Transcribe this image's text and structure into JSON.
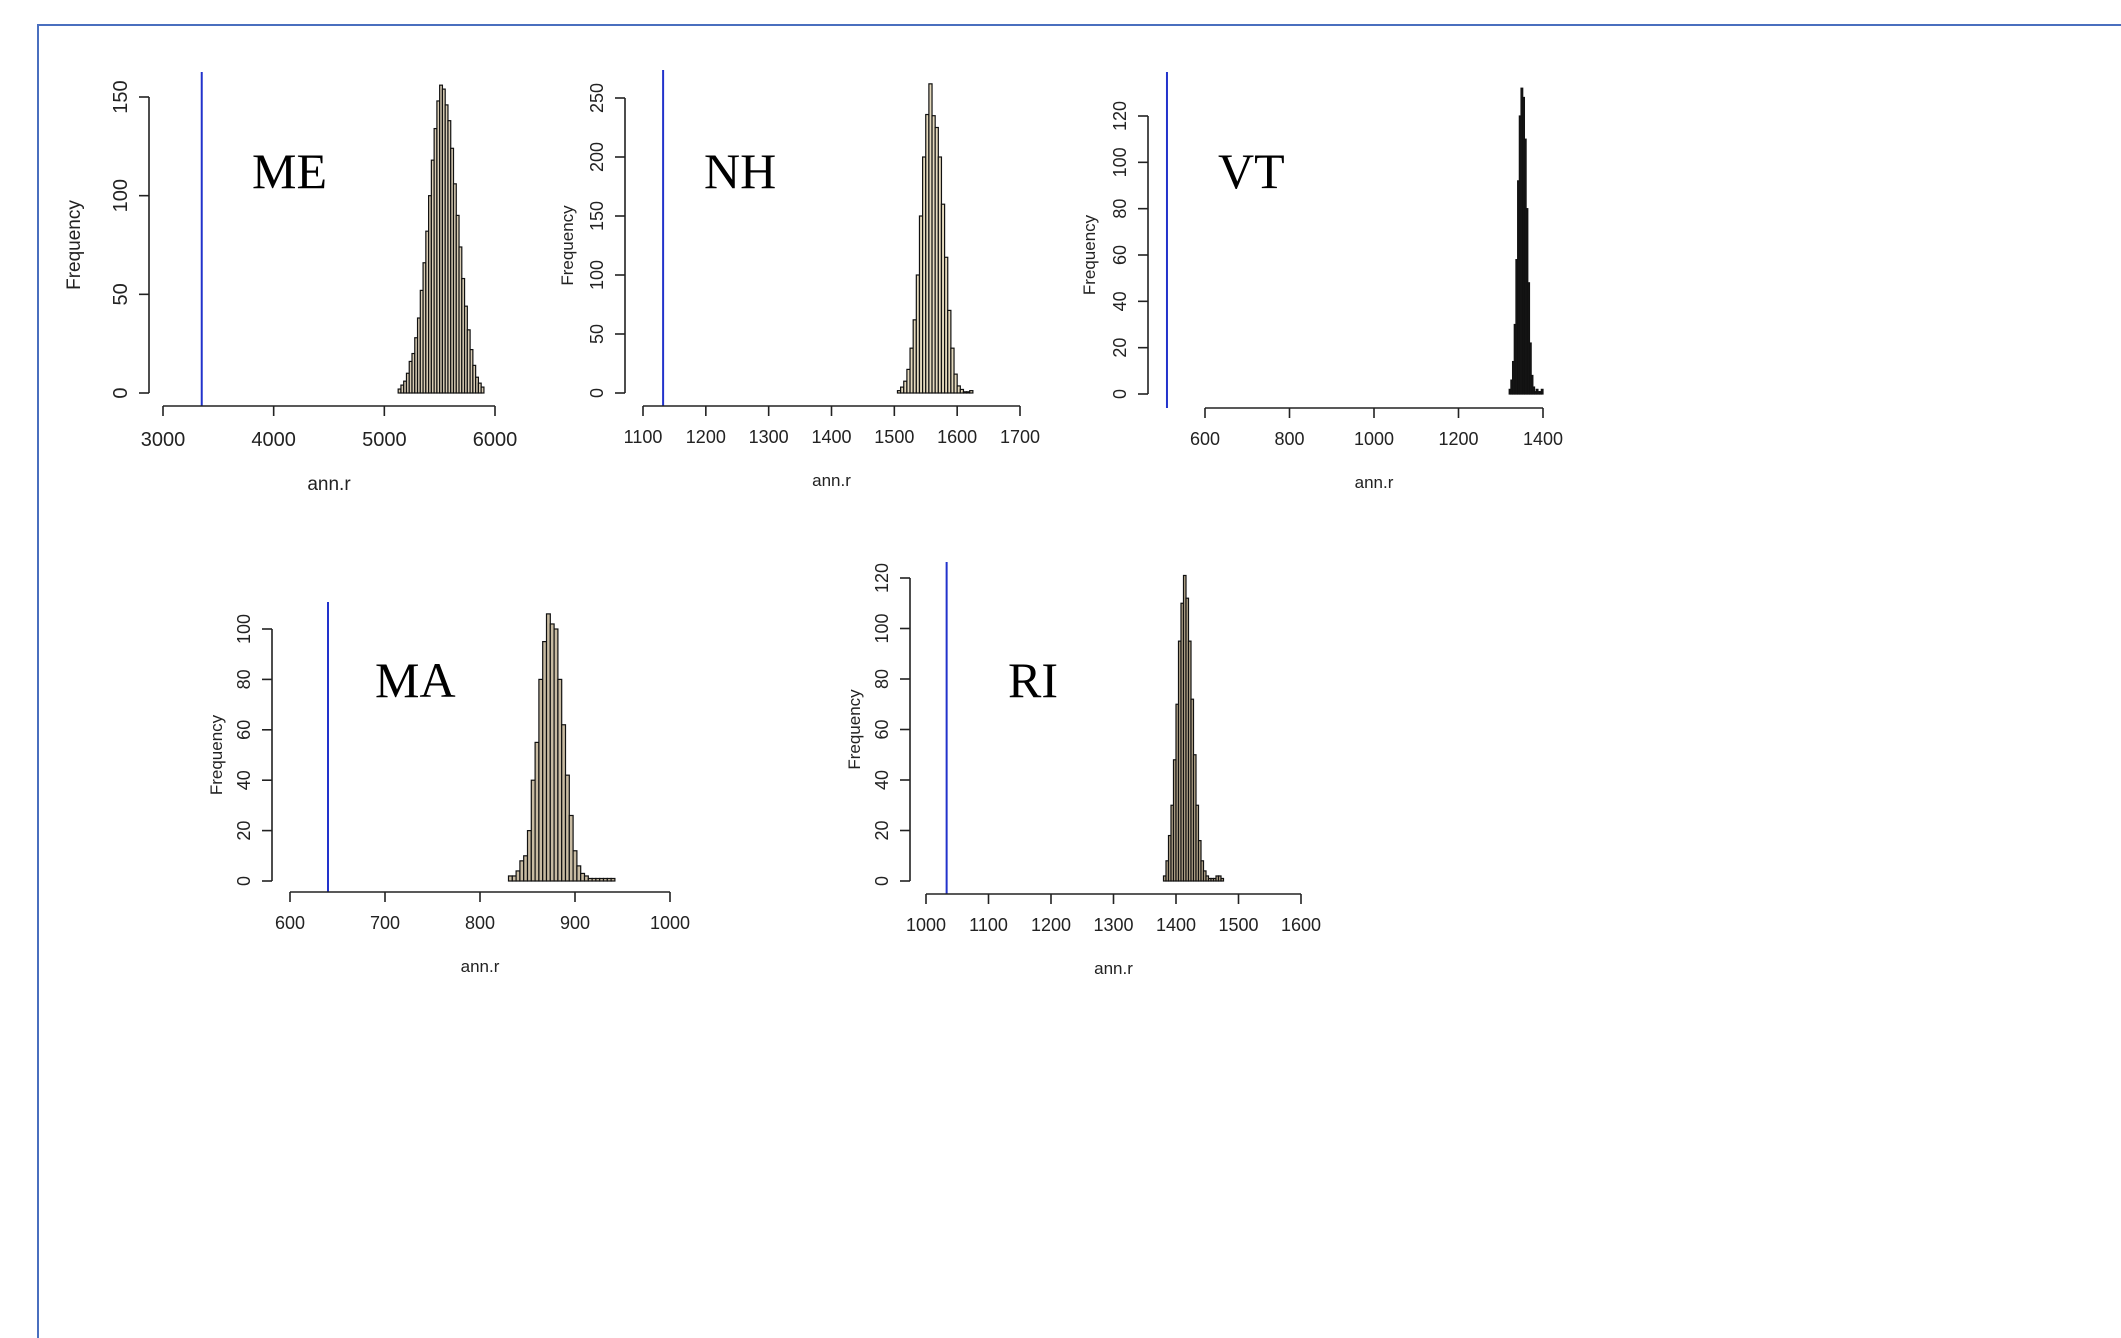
{
  "chart_data": [
    {
      "type": "bar",
      "panel_label": "ME",
      "xlabel": "ann.r",
      "ylabel": "Frequency",
      "xlim": [
        3000,
        6000
      ],
      "ylim": [
        0,
        150
      ],
      "x_ticks": [
        3000,
        4000,
        5000,
        6000
      ],
      "y_ticks": [
        0,
        50,
        100,
        150
      ],
      "reference_line": 3350,
      "bar_color": "#d8ccb4",
      "line_color": "#2233cc",
      "bins": {
        "start": 5125,
        "width": 25,
        "counts": [
          2,
          4,
          6,
          10,
          16,
          20,
          28,
          38,
          52,
          66,
          82,
          100,
          118,
          134,
          148,
          156,
          154,
          146,
          138,
          124,
          106,
          90,
          74,
          58,
          44,
          32,
          22,
          14,
          8,
          5,
          3
        ]
      }
    },
    {
      "type": "bar",
      "panel_label": "NH",
      "xlabel": "ann.r",
      "ylabel": "Frequency",
      "xlim": [
        1100,
        1700
      ],
      "ylim": [
        0,
        250
      ],
      "x_ticks": [
        1100,
        1200,
        1300,
        1400,
        1500,
        1600,
        1700
      ],
      "y_ticks": [
        0,
        50,
        100,
        150,
        200,
        250
      ],
      "reference_line": 1132,
      "bar_color": "#e4d9bd",
      "line_color": "#2233cc",
      "bins": {
        "start": 1505,
        "width": 5,
        "counts": [
          2,
          5,
          10,
          20,
          38,
          62,
          100,
          150,
          200,
          236,
          262,
          235,
          225,
          200,
          160,
          115,
          70,
          38,
          16,
          6,
          3,
          1,
          1,
          2
        ]
      }
    },
    {
      "type": "bar",
      "panel_label": "VT",
      "xlabel": "ann.r",
      "ylabel": "Frequency",
      "xlim": [
        600,
        1400
      ],
      "ylim": [
        0,
        120
      ],
      "x_ticks": [
        600,
        800,
        1000,
        1200,
        1400
      ],
      "y_ticks": [
        0,
        20,
        40,
        60,
        80,
        100,
        120
      ],
      "reference_line": 510,
      "bar_color": "#1a1a1a",
      "line_color": "#2233cc",
      "bins": {
        "start": 1320,
        "width": 4,
        "counts": [
          2,
          6,
          14,
          30,
          58,
          92,
          120,
          132,
          128,
          110,
          80,
          48,
          22,
          8,
          3,
          1,
          2,
          1,
          1,
          2
        ]
      }
    },
    {
      "type": "bar",
      "panel_label": "MA",
      "xlabel": "ann.r",
      "ylabel": "Frequency",
      "xlim": [
        600,
        1000
      ],
      "ylim": [
        0,
        100
      ],
      "x_ticks": [
        600,
        700,
        800,
        900,
        1000
      ],
      "y_ticks": [
        0,
        20,
        40,
        60,
        80,
        100
      ],
      "reference_line": 640,
      "bar_color": "#c8bba2",
      "line_color": "#2233cc",
      "bins": {
        "start": 830,
        "width": 4,
        "counts": [
          2,
          2,
          4,
          8,
          10,
          20,
          40,
          55,
          80,
          95,
          106,
          102,
          100,
          80,
          62,
          42,
          26,
          12,
          6,
          3,
          2,
          1,
          1,
          1,
          1,
          1,
          1,
          1
        ]
      }
    },
    {
      "type": "bar",
      "panel_label": "RI",
      "xlabel": "ann.r",
      "ylabel": "Frequency",
      "xlim": [
        1000,
        1600
      ],
      "ylim": [
        0,
        120
      ],
      "x_ticks": [
        1000,
        1100,
        1200,
        1300,
        1400,
        1500,
        1600
      ],
      "y_ticks": [
        0,
        20,
        40,
        60,
        80,
        100,
        120
      ],
      "reference_line": 1033,
      "bar_color": "#b8a98e",
      "line_color": "#2233cc",
      "bins": {
        "start": 1380,
        "width": 4,
        "counts": [
          2,
          8,
          18,
          30,
          48,
          70,
          95,
          110,
          121,
          112,
          95,
          72,
          50,
          30,
          16,
          8,
          4,
          2,
          1,
          1,
          1,
          2,
          2,
          1
        ]
      }
    }
  ]
}
